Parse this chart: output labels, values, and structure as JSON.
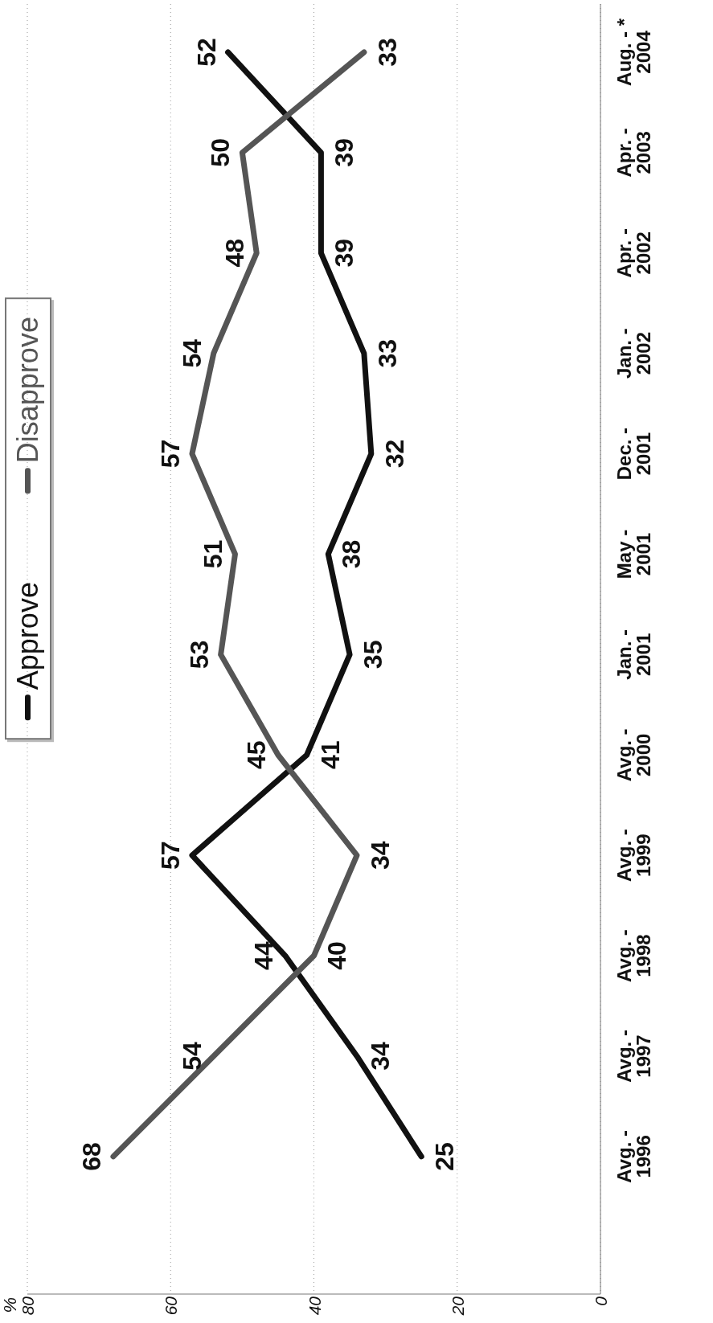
{
  "chart_data": {
    "type": "line",
    "orientation": "horizontal",
    "annotations": [
      "%"
    ],
    "categories": [
      "Aug. - *\n2004",
      "Apr. -\n2003",
      "Apr. -\n2002",
      "Jan. -\n2002",
      "Dec. -\n2001",
      "May -\n2001",
      "Jan. -\n2001",
      "Avg. -\n2000",
      "Avg. -\n1999",
      "Avg. -\n1998",
      "Avg. -\n1997",
      "Avg. -\n1996"
    ],
    "series": [
      {
        "name": "Approve",
        "color": "#111111",
        "values": [
          52,
          39,
          39,
          33,
          32,
          38,
          35,
          41,
          57,
          44,
          34,
          25
        ]
      },
      {
        "name": "Disapprove",
        "color": "#555555",
        "values": [
          33,
          50,
          48,
          54,
          57,
          51,
          53,
          45,
          34,
          40,
          54,
          68
        ]
      }
    ],
    "xlim": [
      80,
      0
    ],
    "xticks": [
      80,
      60,
      40,
      20,
      0
    ],
    "grid": "x",
    "legend": "left",
    "data_labels": true,
    "marker": "none",
    "line_style": "solid"
  }
}
